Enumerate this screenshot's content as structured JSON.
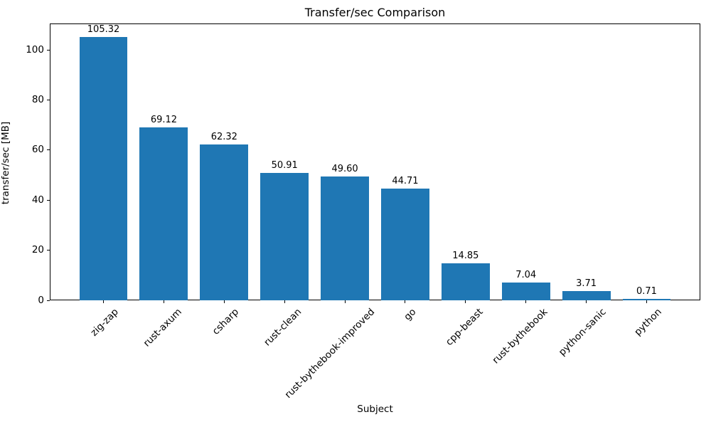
{
  "chart_data": {
    "type": "bar",
    "title": "Transfer/sec Comparison",
    "xlabel": "Subject",
    "ylabel": "transfer/sec [MB]",
    "categories": [
      "zig-zap",
      "rust-axum",
      "csharp",
      "rust-clean",
      "rust-bythebook-improved",
      "go",
      "cpp-beast",
      "rust-bythebook",
      "python-sanic",
      "python"
    ],
    "values": [
      105.32,
      69.12,
      62.32,
      50.91,
      49.6,
      44.71,
      14.85,
      7.04,
      3.71,
      0.71
    ],
    "value_labels": [
      "105.32",
      "69.12",
      "62.32",
      "50.91",
      "49.60",
      "44.71",
      "14.85",
      "7.04",
      "3.71",
      "0.71"
    ],
    "yticks": [
      "0",
      "20",
      "40",
      "60",
      "80",
      "100"
    ],
    "ytick_values": [
      0,
      20,
      40,
      60,
      80,
      100
    ],
    "ylim": [
      0,
      110.59
    ],
    "bar_color": "#1f77b4",
    "frame_color": "#000000",
    "grid": false,
    "legend": null,
    "xtick_rotation_deg": 45
  }
}
